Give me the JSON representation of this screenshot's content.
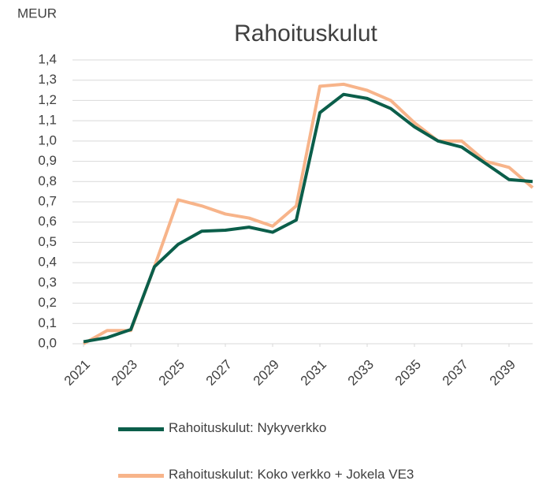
{
  "chart_data": {
    "type": "line",
    "title": "Rahoituskulut",
    "y_label": "MEUR",
    "x": [
      2021,
      2022,
      2023,
      2024,
      2025,
      2026,
      2027,
      2028,
      2029,
      2030,
      2031,
      2032,
      2033,
      2034,
      2035,
      2036,
      2037,
      2038,
      2039,
      2040
    ],
    "xlim": [
      2021,
      2040
    ],
    "xticks": [
      2021,
      2023,
      2025,
      2027,
      2029,
      2031,
      2033,
      2035,
      2037,
      2039
    ],
    "ylim": [
      0,
      1.4
    ],
    "yticks": [
      {
        "value": 0,
        "label": "0,0"
      },
      {
        "value": 0.1,
        "label": "0,1"
      },
      {
        "value": 0.2,
        "label": "0,2"
      },
      {
        "value": 0.3,
        "label": "0,3"
      },
      {
        "value": 0.4,
        "label": "0,4"
      },
      {
        "value": 0.5,
        "label": "0,5"
      },
      {
        "value": 0.6,
        "label": "0,6"
      },
      {
        "value": 0.7,
        "label": "0,7"
      },
      {
        "value": 0.8,
        "label": "0,8"
      },
      {
        "value": 0.9,
        "label": "0,9"
      },
      {
        "value": 1.0,
        "label": "1,0"
      },
      {
        "value": 1.1,
        "label": "1,1"
      },
      {
        "value": 1.2,
        "label": "1,2"
      },
      {
        "value": 1.3,
        "label": "1,3"
      },
      {
        "value": 1.4,
        "label": "1,4"
      }
    ],
    "grid": true,
    "series": [
      {
        "name": "Rahoituskulut: Nykyverkko",
        "color": "#0b5e4a",
        "values": [
          0.01,
          0.03,
          0.07,
          0.38,
          0.49,
          0.555,
          0.56,
          0.575,
          0.55,
          0.61,
          1.14,
          1.23,
          1.21,
          1.16,
          1.07,
          1.0,
          0.97,
          0.89,
          0.81,
          0.8
        ]
      },
      {
        "name": "Rahoituskulut: Koko verkko + Jokela VE3",
        "color": "#f7b48a",
        "values": [
          0.0,
          0.065,
          0.065,
          0.38,
          0.71,
          0.68,
          0.64,
          0.62,
          0.58,
          0.68,
          1.27,
          1.28,
          1.25,
          1.2,
          1.09,
          1.0,
          1.0,
          0.9,
          0.87,
          0.77
        ]
      }
    ]
  }
}
